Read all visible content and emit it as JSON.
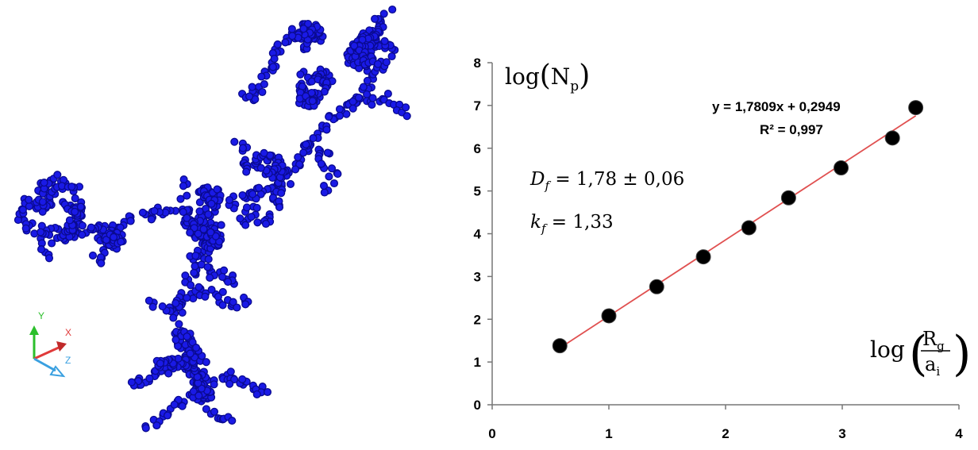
{
  "colors": {
    "aggregate": "#1a1ae6",
    "aggregate_dark": "#0a0a90",
    "fit_line": "#e05050",
    "points": "#000000",
    "axis": "#777777",
    "triad_x": "#e03a3a",
    "triad_y": "#2bbf2b",
    "triad_z": "#3aa0e0"
  },
  "triad": {
    "x_label": "X",
    "y_label": "Y",
    "z_label": "Z"
  },
  "chart_data": {
    "type": "scatter",
    "x": [
      0.58,
      1.0,
      1.41,
      1.81,
      2.2,
      2.54,
      2.99,
      3.43,
      3.63
    ],
    "y": [
      1.38,
      2.08,
      2.76,
      3.46,
      4.14,
      4.84,
      5.54,
      6.24,
      6.95
    ],
    "xlim": [
      0,
      4
    ],
    "ylim": [
      0,
      8
    ],
    "xticks": [
      "0",
      "1",
      "2",
      "3",
      "4"
    ],
    "yticks": [
      "0",
      "1",
      "2",
      "3",
      "4",
      "5",
      "6",
      "7",
      "8"
    ],
    "ylabel": {
      "func": "log",
      "var": "N",
      "sub": "p"
    },
    "xlabel": {
      "func": "log",
      "num": "R",
      "num_sub": "g",
      "den": "a",
      "den_sub": "i"
    },
    "trendline": {
      "slope": 1.7809,
      "intercept": 0.2949,
      "x_range": [
        0.58,
        3.63
      ],
      "equation": "y = 1,7809x  + 0,2949",
      "r2": "R² = 0,997"
    },
    "annotations": {
      "df_sym": "D",
      "df_sub": "f",
      "df_value": " = 1,78 ± 0,06",
      "kf_sym": "k",
      "kf_sub": "f",
      "kf_value": " = 1,33"
    }
  }
}
